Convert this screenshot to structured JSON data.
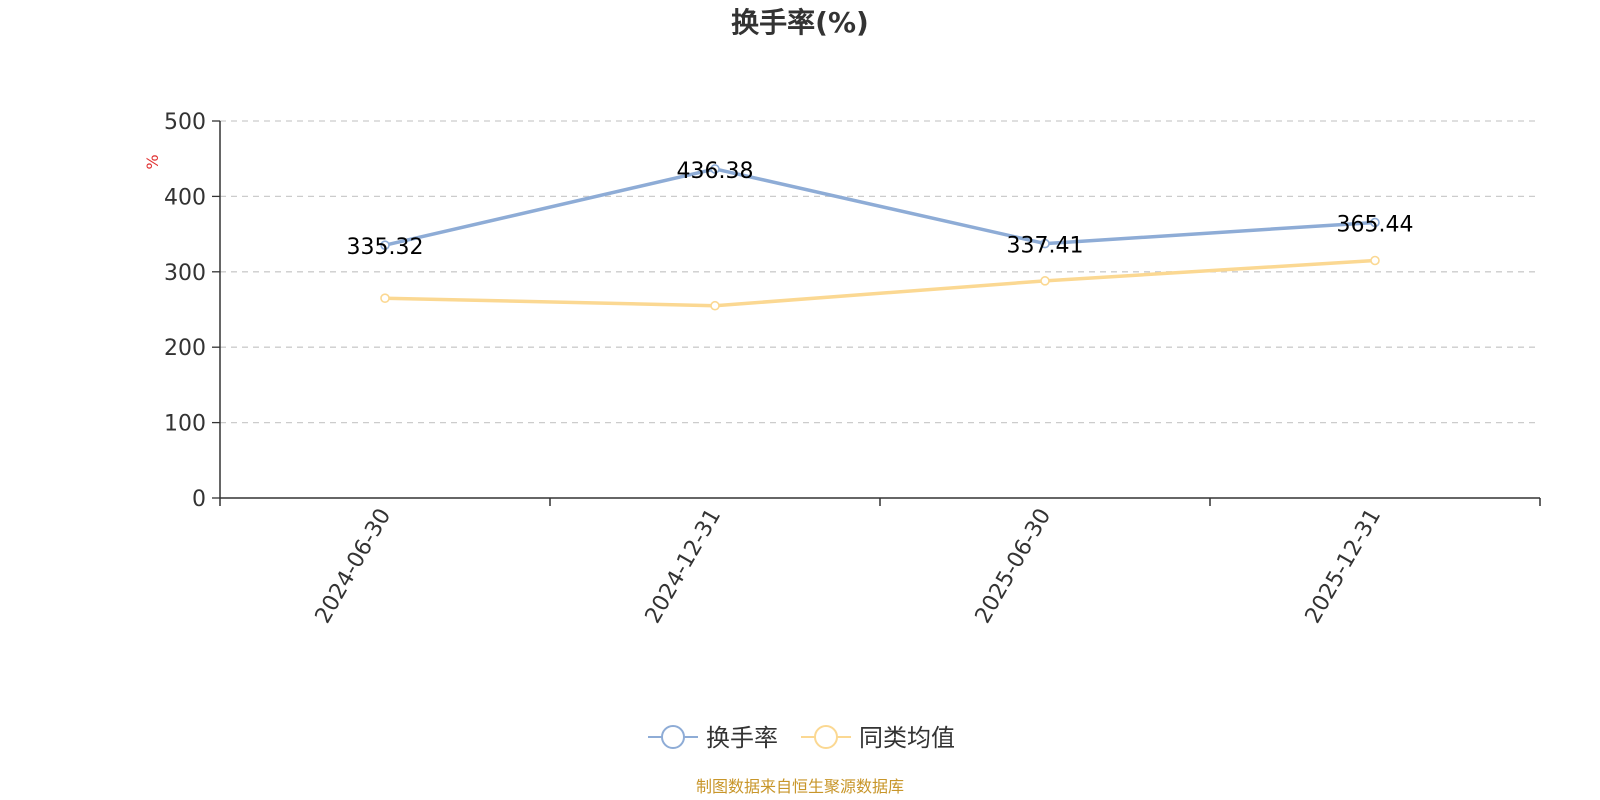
{
  "chart_data": {
    "type": "line",
    "title": "换手率(%)",
    "ylabel": "%",
    "categories": [
      "2024-06-30",
      "2024-12-31",
      "2025-06-30",
      "2025-12-31"
    ],
    "ylim": [
      0,
      500
    ],
    "yticks": [
      0,
      100,
      200,
      300,
      400,
      500
    ],
    "grid": true,
    "legend_position": "bottom",
    "series": [
      {
        "name": "换手率",
        "values": [
          335.32,
          436.38,
          337.41,
          365.44
        ],
        "color": "#8eacd6",
        "show_labels": true
      },
      {
        "name": "同类均值",
        "values": [
          265,
          255,
          288,
          315
        ],
        "color": "#fbd892",
        "show_labels": false
      }
    ],
    "source": "制图数据来自恒生聚源数据库"
  }
}
